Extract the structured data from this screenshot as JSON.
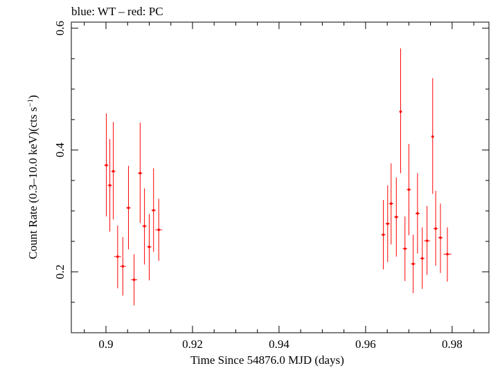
{
  "chart_data": {
    "type": "scatter",
    "title": "blue: WT – red: PC",
    "xlabel": "Time Since 54876.0 MJD (days)",
    "ylabel_main": "Count Rate (0.3–10.0 keV)(cts s",
    "ylabel_sup": "−1",
    "ylabel_close": ")",
    "xlim": [
      0.892,
      0.9885
    ],
    "ylim": [
      0.1,
      0.61
    ],
    "x_ticks": [
      {
        "value": 0.9,
        "label": "0.9"
      },
      {
        "value": 0.92,
        "label": "0.92"
      },
      {
        "value": 0.94,
        "label": "0.94"
      },
      {
        "value": 0.96,
        "label": "0.96"
      },
      {
        "value": 0.98,
        "label": "0.98"
      }
    ],
    "y_ticks": [
      {
        "value": 0.2,
        "label": "0.2"
      },
      {
        "value": 0.4,
        "label": "0.4"
      },
      {
        "value": 0.6,
        "label": "0.6"
      }
    ],
    "x_minor_step": 0.005,
    "y_minor_step": 0.05,
    "series": [
      {
        "name": "PC",
        "color": "#ff0000",
        "points": [
          {
            "x": 0.9001,
            "xerr": 0.0005,
            "y": 0.375,
            "ylo": 0.291,
            "yhi": 0.46
          },
          {
            "x": 0.9009,
            "xerr": 0.0005,
            "y": 0.342,
            "ylo": 0.266,
            "yhi": 0.418
          },
          {
            "x": 0.9017,
            "xerr": 0.0005,
            "y": 0.365,
            "ylo": 0.286,
            "yhi": 0.446
          },
          {
            "x": 0.9027,
            "xerr": 0.0008,
            "y": 0.225,
            "ylo": 0.173,
            "yhi": 0.276
          },
          {
            "x": 0.9039,
            "xerr": 0.0007,
            "y": 0.209,
            "ylo": 0.161,
            "yhi": 0.257
          },
          {
            "x": 0.9052,
            "xerr": 0.0005,
            "y": 0.305,
            "ylo": 0.237,
            "yhi": 0.374
          },
          {
            "x": 0.9065,
            "xerr": 0.0007,
            "y": 0.187,
            "ylo": 0.145,
            "yhi": 0.229
          },
          {
            "x": 0.9079,
            "xerr": 0.0005,
            "y": 0.362,
            "ylo": 0.28,
            "yhi": 0.445
          },
          {
            "x": 0.9089,
            "xerr": 0.0005,
            "y": 0.275,
            "ylo": 0.212,
            "yhi": 0.337
          },
          {
            "x": 0.91,
            "xerr": 0.0005,
            "y": 0.241,
            "ylo": 0.186,
            "yhi": 0.295
          },
          {
            "x": 0.911,
            "xerr": 0.0005,
            "y": 0.301,
            "ylo": 0.233,
            "yhi": 0.37
          },
          {
            "x": 0.9122,
            "xerr": 0.0008,
            "y": 0.269,
            "ylo": 0.218,
            "yhi": 0.32
          },
          {
            "x": 0.9641,
            "xerr": 0.0005,
            "y": 0.261,
            "ylo": 0.204,
            "yhi": 0.318
          },
          {
            "x": 0.9651,
            "xerr": 0.0005,
            "y": 0.279,
            "ylo": 0.216,
            "yhi": 0.342
          },
          {
            "x": 0.9659,
            "xerr": 0.0005,
            "y": 0.312,
            "ylo": 0.245,
            "yhi": 0.378
          },
          {
            "x": 0.9671,
            "xerr": 0.0005,
            "y": 0.29,
            "ylo": 0.225,
            "yhi": 0.355
          },
          {
            "x": 0.9681,
            "xerr": 0.0003,
            "y": 0.463,
            "ylo": 0.362,
            "yhi": 0.567
          },
          {
            "x": 0.9691,
            "xerr": 0.0005,
            "y": 0.238,
            "ylo": 0.185,
            "yhi": 0.291
          },
          {
            "x": 0.97,
            "xerr": 0.0005,
            "y": 0.335,
            "ylo": 0.26,
            "yhi": 0.41
          },
          {
            "x": 0.971,
            "xerr": 0.0005,
            "y": 0.213,
            "ylo": 0.165,
            "yhi": 0.261
          },
          {
            "x": 0.972,
            "xerr": 0.0005,
            "y": 0.296,
            "ylo": 0.23,
            "yhi": 0.362
          },
          {
            "x": 0.9731,
            "xerr": 0.0005,
            "y": 0.222,
            "ylo": 0.172,
            "yhi": 0.273
          },
          {
            "x": 0.9742,
            "xerr": 0.0007,
            "y": 0.251,
            "ylo": 0.195,
            "yhi": 0.308
          },
          {
            "x": 0.9755,
            "xerr": 0.0003,
            "y": 0.422,
            "ylo": 0.328,
            "yhi": 0.518
          },
          {
            "x": 0.9762,
            "xerr": 0.0005,
            "y": 0.271,
            "ylo": 0.21,
            "yhi": 0.333
          },
          {
            "x": 0.9773,
            "xerr": 0.0005,
            "y": 0.256,
            "ylo": 0.198,
            "yhi": 0.312
          },
          {
            "x": 0.9789,
            "xerr": 0.0009,
            "y": 0.229,
            "ylo": 0.184,
            "yhi": 0.273
          }
        ]
      }
    ]
  }
}
